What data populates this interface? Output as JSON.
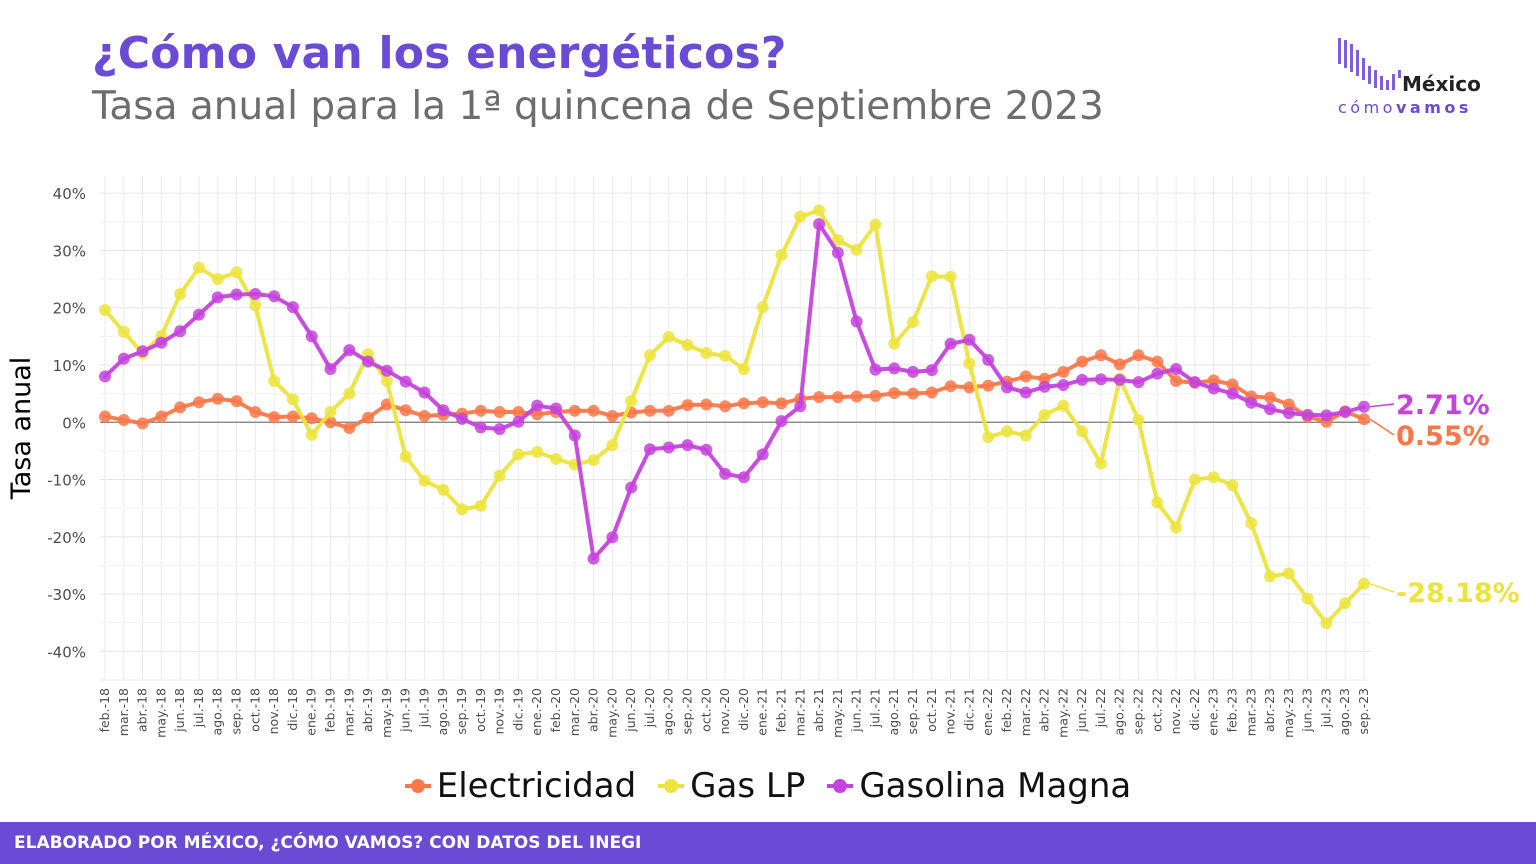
{
  "header": {
    "title": "¿Cómo van los energéticos?",
    "subtitle": "Tasa anual para la 1ª quincena de Septiembre 2023"
  },
  "logo": {
    "word1": "México",
    "word2_a": "cómo",
    "word2_b": "vamos"
  },
  "footer": {
    "text": "ELABORADO POR MÉXICO, ¿CÓMO VAMOS? CON DATOS DEL INEGI"
  },
  "colors": {
    "Electricidad": "#f9784a",
    "Gas LP": "#ece43e",
    "Gasolina Magna": "#c542dd"
  },
  "chart_data": {
    "type": "line",
    "ylabel": "Tasa anual",
    "xlabel": "",
    "ylim": [
      -45,
      43
    ],
    "yticks": [
      -40,
      -30,
      -20,
      -10,
      0,
      10,
      20,
      30,
      40
    ],
    "ytick_labels": [
      "-40%",
      "-30%",
      "-20%",
      "-10%",
      "0%",
      "10%",
      "20%",
      "30%",
      "40%"
    ],
    "grid": true,
    "legend_position": "bottom",
    "categories": [
      "feb.-18",
      "mar.-18",
      "abr.-18",
      "may.-18",
      "jun.-18",
      "jul.-18",
      "ago.-18",
      "sep.-18",
      "oct.-18",
      "nov.-18",
      "dic.-18",
      "ene.-19",
      "feb.-19",
      "mar.-19",
      "abr.-19",
      "may.-19",
      "jun.-19",
      "jul.-19",
      "ago.-19",
      "sep.-19",
      "oct.-19",
      "nov.-19",
      "dic.-19",
      "ene.-20",
      "feb.-20",
      "mar.-20",
      "abr.-20",
      "may.-20",
      "jun.-20",
      "jul.-20",
      "ago.-20",
      "sep.-20",
      "oct.-20",
      "nov.-20",
      "dic.-20",
      "ene.-21",
      "feb.-21",
      "mar.-21",
      "abr.-21",
      "may.-21",
      "jun.-21",
      "jul.-21",
      "ago.-21",
      "sep.-21",
      "oct.-21",
      "nov.-21",
      "dic.-21",
      "ene.-22",
      "feb.-22",
      "mar.-22",
      "abr.-22",
      "may.-22",
      "jun.-22",
      "jul.-22",
      "ago.-22",
      "sep.-22",
      "oct.-22",
      "nov.-22",
      "dic.-22",
      "ene.-23",
      "feb.-23",
      "mar.-23",
      "abr.-23",
      "may.-23",
      "jun.-23",
      "jul.-23",
      "ago.-23",
      "sep.-23"
    ],
    "series": [
      {
        "name": "Electricidad",
        "end_label": "0.55%",
        "values": [
          1.0,
          0.4,
          -0.2,
          1.0,
          2.6,
          3.5,
          4.1,
          3.7,
          1.8,
          0.9,
          1.0,
          0.7,
          0.0,
          -1.0,
          0.8,
          3.1,
          2.1,
          1.1,
          1.3,
          1.5,
          2.0,
          1.8,
          1.8,
          1.4,
          1.8,
          2.0,
          2.0,
          1.1,
          1.7,
          2.0,
          2.0,
          3.0,
          3.1,
          2.8,
          3.3,
          3.5,
          3.3,
          4.1,
          4.4,
          4.4,
          4.5,
          4.6,
          5.1,
          5.0,
          5.2,
          6.3,
          6.1,
          6.4,
          7.1,
          8.0,
          7.6,
          8.8,
          10.6,
          11.7,
          10.1,
          11.7,
          10.6,
          7.2,
          6.9,
          7.3,
          6.6,
          4.5,
          4.3,
          3.1,
          1.0,
          0.1,
          1.9,
          0.55
        ]
      },
      {
        "name": "Gas LP",
        "end_label": "-28.18%",
        "values": [
          19.6,
          15.8,
          12.0,
          15.1,
          22.4,
          27.0,
          25.0,
          26.2,
          20.4,
          7.2,
          4.0,
          -2.2,
          1.8,
          5.0,
          11.9,
          7.2,
          -6.0,
          -10.2,
          -11.8,
          -15.2,
          -14.6,
          -9.3,
          -5.6,
          -5.2,
          -6.4,
          -7.4,
          -6.6,
          -4.0,
          3.7,
          11.7,
          14.9,
          13.5,
          12.1,
          11.6,
          9.3,
          20.1,
          29.2,
          35.9,
          37.0,
          31.8,
          30.1,
          34.5,
          13.7,
          17.5,
          25.5,
          25.4,
          10.3,
          -2.6,
          -1.6,
          -2.3,
          1.3,
          2.9,
          -1.6,
          -7.2,
          7.6,
          0.4,
          -14.0,
          -18.4,
          -10.0,
          -9.6,
          -11.0,
          -17.6,
          -26.9,
          -26.4,
          -30.8,
          -35.1,
          -31.6,
          -28.18
        ]
      },
      {
        "name": "Gasolina Magna",
        "end_label": "2.71%",
        "values": [
          8.0,
          11.1,
          12.4,
          13.9,
          15.9,
          18.8,
          21.8,
          22.3,
          22.4,
          22.0,
          20.1,
          15.0,
          9.3,
          12.6,
          10.6,
          9.0,
          7.1,
          5.2,
          2.1,
          0.6,
          -0.9,
          -1.2,
          0.1,
          2.9,
          2.4,
          -2.3,
          -23.8,
          -20.1,
          -11.4,
          -4.7,
          -4.4,
          -4.0,
          -4.8,
          -9.0,
          -9.6,
          -5.6,
          0.2,
          2.8,
          34.6,
          29.6,
          17.6,
          9.2,
          9.4,
          8.8,
          9.1,
          13.7,
          14.4,
          10.9,
          6.1,
          5.2,
          6.2,
          6.5,
          7.4,
          7.5,
          7.4,
          7.0,
          8.5,
          9.3,
          7.0,
          5.9,
          5.0,
          3.4,
          2.3,
          1.6,
          1.3,
          1.2,
          1.8,
          2.71
        ]
      }
    ]
  }
}
